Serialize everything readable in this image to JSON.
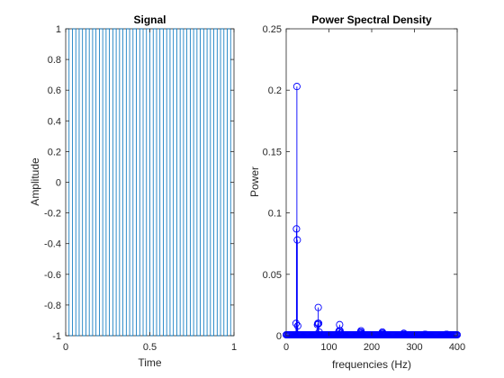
{
  "chart_data": [
    {
      "type": "line",
      "title": "Signal",
      "xlabel": "Time",
      "ylabel": "Amplitude",
      "xlim": [
        0,
        1
      ],
      "ylim": [
        -1,
        1
      ],
      "xticks": [
        "0",
        "0.5",
        "1"
      ],
      "yticks": [
        "-1",
        "-0.8",
        "-0.6",
        "-0.4",
        "-0.2",
        "0",
        "0.2",
        "0.4",
        "0.6",
        "0.8",
        "1"
      ],
      "series": [
        {
          "kind": "square-wave",
          "frequency_hz": 25,
          "duration_s": 1,
          "amplitude_min": -1,
          "amplitude_max": 1,
          "color": "#0072BD"
        }
      ]
    },
    {
      "type": "stem",
      "title": "Power Spectral Density",
      "xlabel": "frequencies (Hz)",
      "ylabel": "Power",
      "xlim": [
        0,
        400
      ],
      "ylim": [
        0,
        0.25
      ],
      "xticks": [
        "0",
        "100",
        "200",
        "300",
        "400"
      ],
      "yticks": [
        "0",
        "0.05",
        "0.1",
        "0.15",
        "0.2",
        "0.25"
      ],
      "color": "#0000FF",
      "x": [
        23,
        24,
        25,
        26,
        27,
        73,
        74,
        75,
        76,
        77,
        123,
        124,
        125,
        126,
        127,
        173,
        174,
        175,
        176,
        177,
        223,
        224,
        225,
        226,
        227,
        273,
        274,
        275,
        276,
        277,
        323,
        324,
        325,
        326,
        327,
        373,
        374,
        375,
        376,
        377
      ],
      "y": [
        0.01,
        0.087,
        0.203,
        0.078,
        0.008,
        0.009,
        0.01,
        0.023,
        0.01,
        0.003,
        0.003,
        0.004,
        0.009,
        0.004,
        0.002,
        0.002,
        0.003,
        0.004,
        0.002,
        0.001,
        0.001,
        0.002,
        0.003,
        0.002,
        0.001,
        0.001,
        0.001,
        0.002,
        0.001,
        0.001,
        0.001,
        0.001,
        0.001,
        0.001,
        0.001,
        0.001,
        0.001,
        0.001,
        0.001,
        0.001
      ],
      "baseline_dense_markers": true
    }
  ]
}
